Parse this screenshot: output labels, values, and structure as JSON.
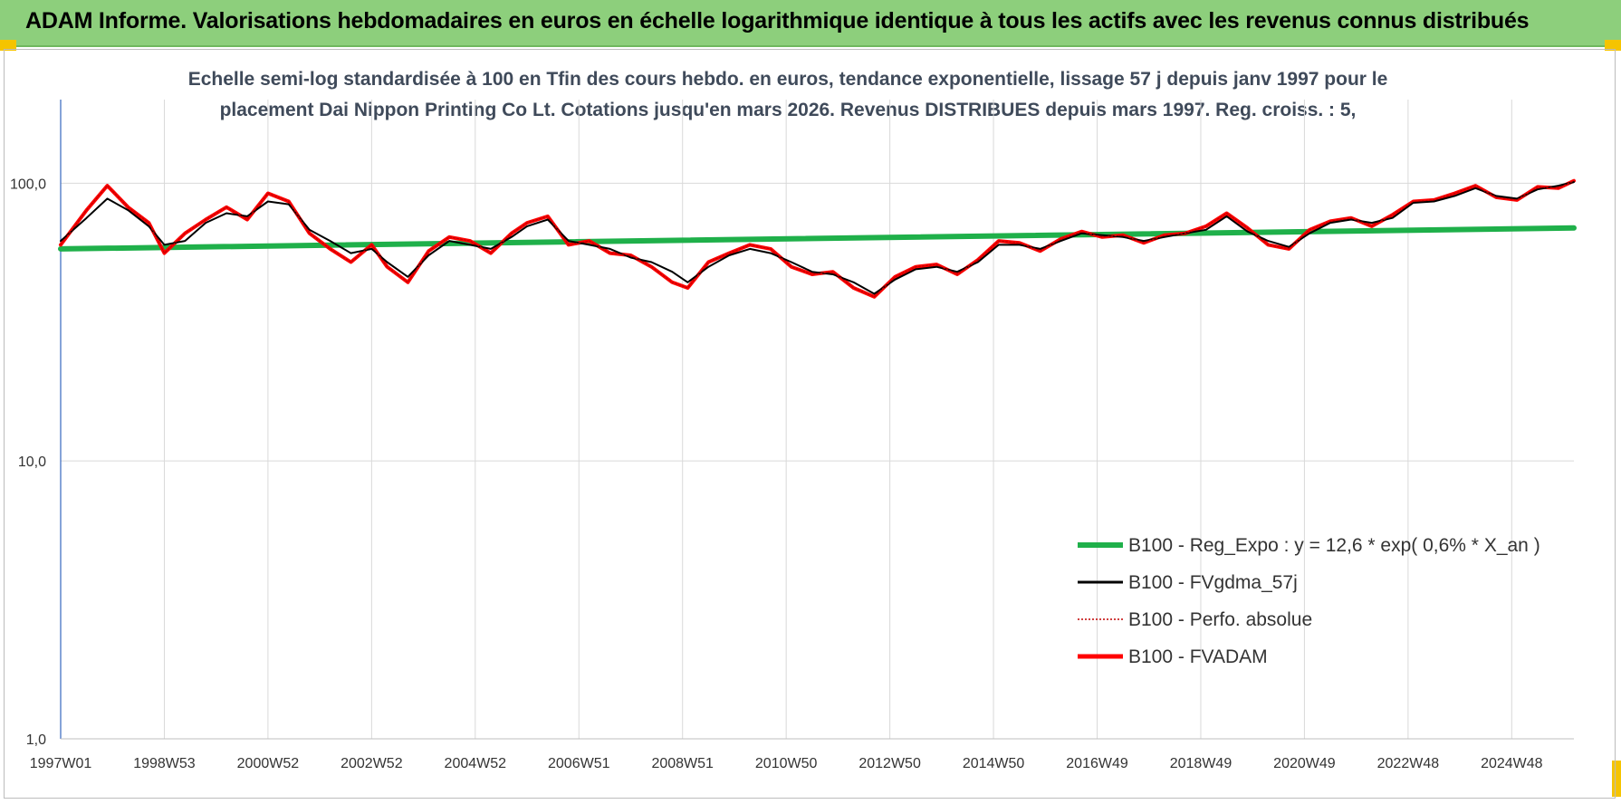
{
  "banner": {
    "title": "ADAM Informe. Valorisations hebdomadaires en euros en échelle logarithmique identique à tous les actifs avec les revenus connus distribués"
  },
  "colors": {
    "banner_bg": "#8dcf7c",
    "corner_marks": "#f5c400",
    "title_text": "#3f4a5a",
    "gridline": "#d9d9d9"
  },
  "chart_data": {
    "type": "line",
    "title_line1": "Echelle semi-log standardisée à 100 en Tfin des cours hebdo. en euros, tendance exponentielle, lissage 57 j depuis janv 1997 pour le",
    "title_line2": "placement Dai Nippon Printing Co Lt. Cotations jusqu'en mars 2026. Revenus DISTRIBUES depuis mars 1997. Reg. croiss. : 5,",
    "y_scale": "log",
    "ylim": [
      1,
      200
    ],
    "y_ticks": [
      1,
      10,
      100
    ],
    "y_tick_labels": [
      "1,0",
      "10,0",
      "100,0"
    ],
    "x_tick_labels": [
      "1997W01",
      "1998W53",
      "2000W52",
      "2002W52",
      "2004W52",
      "2006W51",
      "2008W51",
      "2010W50",
      "2012W50",
      "2014W50",
      "2016W49",
      "2018W49",
      "2020W49",
      "2022W48",
      "2024W48"
    ],
    "x_tick_years": [
      1997.0,
      1999.0,
      2001.0,
      2003.0,
      2005.0,
      2007.0,
      2009.0,
      2011.0,
      2013.0,
      2015.0,
      2017.0,
      2019.0,
      2021.0,
      2023.0,
      2025.0
    ],
    "x_range": [
      1997.0,
      2026.2
    ],
    "grid": true,
    "legend_position": "bottom-right",
    "series": [
      {
        "name": "B100 - Reg_Expo : y = 12,6 * exp( 0,6% *  X_an )",
        "color": "#1fb04a",
        "style": "thick",
        "x": [
          1997.0,
          2026.2
        ],
        "values": [
          58,
          69
        ]
      },
      {
        "name": "B100 - FVgdma_57j",
        "color": "#000000",
        "style": "solid",
        "x": [
          1997.0,
          1997.5,
          1997.9,
          1998.3,
          1998.7,
          1999.0,
          1999.4,
          1999.8,
          2000.2,
          2000.6,
          2001.0,
          2001.4,
          2001.8,
          2002.2,
          2002.6,
          2003.0,
          2003.3,
          2003.7,
          2004.1,
          2004.5,
          2004.9,
          2005.3,
          2005.7,
          2006.0,
          2006.4,
          2006.8,
          2007.2,
          2007.6,
          2008.0,
          2008.4,
          2008.8,
          2009.1,
          2009.5,
          2009.9,
          2010.3,
          2010.7,
          2011.1,
          2011.5,
          2011.9,
          2012.3,
          2012.7,
          2013.1,
          2013.5,
          2013.9,
          2014.3,
          2014.7,
          2015.1,
          2015.5,
          2015.9,
          2016.3,
          2016.7,
          2017.1,
          2017.5,
          2017.9,
          2018.3,
          2018.7,
          2019.1,
          2019.5,
          2019.9,
          2020.3,
          2020.7,
          2021.1,
          2021.5,
          2021.9,
          2022.3,
          2022.7,
          2023.1,
          2023.5,
          2023.9,
          2024.3,
          2024.7,
          2025.1,
          2025.5,
          2025.9,
          2026.2
        ],
        "values": [
          62,
          75,
          88,
          80,
          70,
          60,
          62,
          72,
          78,
          76,
          86,
          84,
          68,
          62,
          56,
          58,
          52,
          46,
          55,
          62,
          60,
          58,
          64,
          70,
          74,
          62,
          60,
          58,
          54,
          52,
          48,
          44,
          50,
          55,
          58,
          56,
          52,
          48,
          47,
          44,
          40,
          45,
          49,
          50,
          48,
          52,
          60,
          60,
          58,
          62,
          66,
          65,
          64,
          62,
          64,
          66,
          68,
          76,
          67,
          62,
          59,
          66,
          72,
          74,
          72,
          75,
          85,
          86,
          90,
          96,
          90,
          88,
          95,
          98,
          101
        ]
      },
      {
        "name": "B100 - Perfo. absolue",
        "color": "#c00000",
        "style": "dotted",
        "x": [
          1997.0,
          1997.5,
          1997.9,
          1998.3,
          1998.7,
          1999.0,
          1999.4,
          1999.8,
          2000.2,
          2000.6,
          2001.0,
          2001.4,
          2001.8,
          2002.2,
          2002.6,
          2003.0,
          2003.3,
          2003.7,
          2004.1,
          2004.5,
          2004.9,
          2005.3,
          2005.7,
          2006.0,
          2006.4,
          2006.8,
          2007.2,
          2007.6,
          2008.0,
          2008.4,
          2008.8,
          2009.1,
          2009.5,
          2009.9,
          2010.3,
          2010.7,
          2011.1,
          2011.5,
          2011.9,
          2012.3,
          2012.7,
          2013.1,
          2013.5,
          2013.9,
          2014.3,
          2014.7,
          2015.1,
          2015.5,
          2015.9,
          2016.3,
          2016.7,
          2017.1,
          2017.5,
          2017.9,
          2018.3,
          2018.7,
          2019.1,
          2019.5,
          2019.9,
          2020.3,
          2020.7,
          2021.1,
          2021.5,
          2021.9,
          2022.3,
          2022.7,
          2023.1,
          2023.5,
          2023.9,
          2024.3,
          2024.7,
          2025.1,
          2025.5,
          2025.9,
          2026.2
        ],
        "values": [
          60,
          80,
          98,
          82,
          72,
          56,
          66,
          74,
          82,
          74,
          92,
          86,
          66,
          58,
          52,
          60,
          50,
          44,
          57,
          64,
          62,
          56,
          66,
          72,
          76,
          60,
          62,
          56,
          55,
          50,
          44,
          42,
          52,
          56,
          60,
          58,
          50,
          47,
          48,
          42,
          39,
          46,
          50,
          51,
          47,
          53,
          62,
          61,
          57,
          63,
          67,
          64,
          65,
          61,
          65,
          66,
          70,
          78,
          69,
          60,
          58,
          68,
          73,
          75,
          70,
          77,
          86,
          87,
          92,
          98,
          89,
          87,
          97,
          96,
          102
        ]
      },
      {
        "name": "B100 - FVADAM",
        "color": "#ff0000",
        "style": "thick",
        "x": [
          1997.0,
          1997.5,
          1997.9,
          1998.3,
          1998.7,
          1999.0,
          1999.4,
          1999.8,
          2000.2,
          2000.6,
          2001.0,
          2001.4,
          2001.8,
          2002.2,
          2002.6,
          2003.0,
          2003.3,
          2003.7,
          2004.1,
          2004.5,
          2004.9,
          2005.3,
          2005.7,
          2006.0,
          2006.4,
          2006.8,
          2007.2,
          2007.6,
          2008.0,
          2008.4,
          2008.8,
          2009.1,
          2009.5,
          2009.9,
          2010.3,
          2010.7,
          2011.1,
          2011.5,
          2011.9,
          2012.3,
          2012.7,
          2013.1,
          2013.5,
          2013.9,
          2014.3,
          2014.7,
          2015.1,
          2015.5,
          2015.9,
          2016.3,
          2016.7,
          2017.1,
          2017.5,
          2017.9,
          2018.3,
          2018.7,
          2019.1,
          2019.5,
          2019.9,
          2020.3,
          2020.7,
          2021.1,
          2021.5,
          2021.9,
          2022.3,
          2022.7,
          2023.1,
          2023.5,
          2023.9,
          2024.3,
          2024.7,
          2025.1,
          2025.5,
          2025.9,
          2026.2
        ],
        "values": [
          60,
          80,
          98,
          82,
          72,
          56,
          66,
          74,
          82,
          74,
          92,
          86,
          66,
          58,
          52,
          60,
          50,
          44,
          57,
          64,
          62,
          56,
          66,
          72,
          76,
          60,
          62,
          56,
          55,
          50,
          44,
          42,
          52,
          56,
          60,
          58,
          50,
          47,
          48,
          42,
          39,
          46,
          50,
          51,
          47,
          53,
          62,
          61,
          57,
          63,
          67,
          64,
          65,
          61,
          65,
          66,
          70,
          78,
          69,
          60,
          58,
          68,
          73,
          75,
          70,
          77,
          86,
          87,
          92,
          98,
          89,
          87,
          97,
          96,
          102
        ]
      }
    ]
  }
}
